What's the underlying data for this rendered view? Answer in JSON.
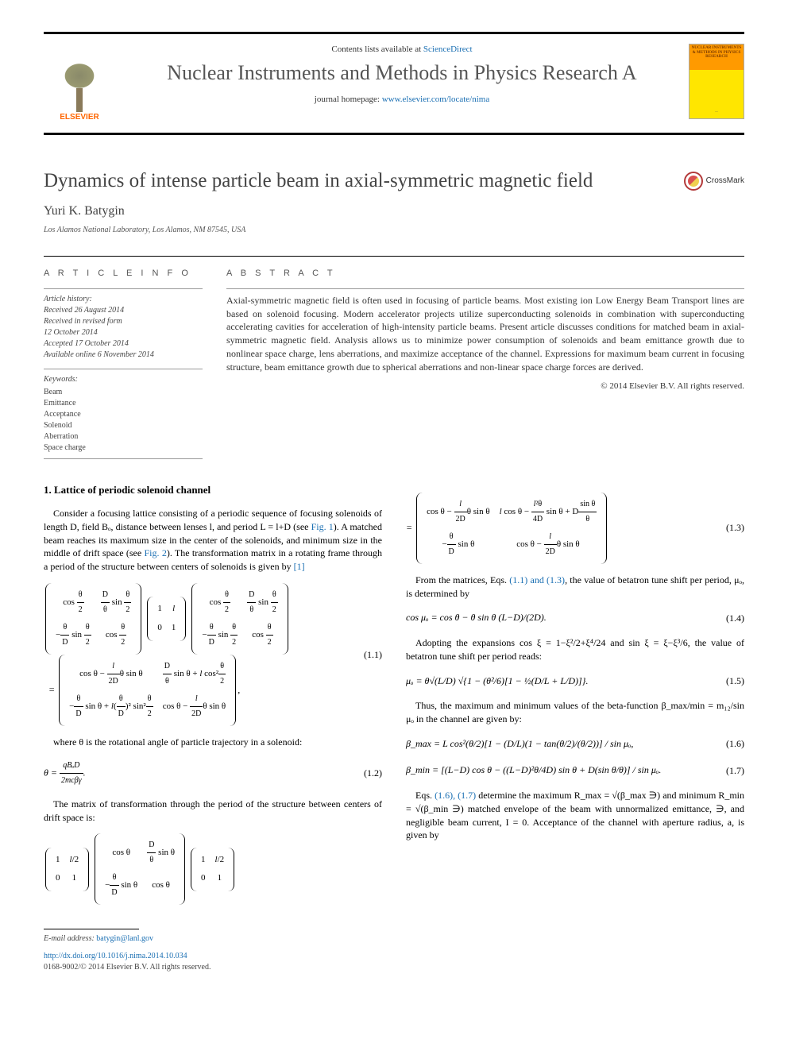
{
  "header": {
    "contents_prefix": "Contents lists available at ",
    "contents_link": "ScienceDirect",
    "journal_name": "Nuclear Instruments and Methods in Physics Research A",
    "homepage_prefix": "journal homepage: ",
    "homepage_link": "www.elsevier.com/locate/nima",
    "publisher": "ELSEVIER",
    "cover_text": "NUCLEAR INSTRUMENTS & METHODS IN PHYSICS RESEARCH"
  },
  "article": {
    "title": "Dynamics of intense particle beam in axial-symmetric magnetic field",
    "crossmark": "CrossMark",
    "author": "Yuri K. Batygin",
    "affiliation": "Los Alamos National Laboratory, Los Alamos, NM 87545, USA"
  },
  "info": {
    "section_label": "A R T I C L E   I N F O",
    "history_label": "Article history:",
    "history": [
      "Received 26 August 2014",
      "Received in revised form",
      "12 October 2014",
      "Accepted 17 October 2014",
      "Available online 6 November 2014"
    ],
    "keywords_label": "Keywords:",
    "keywords": [
      "Beam",
      "Emittance",
      "Acceptance",
      "Solenoid",
      "Aberration",
      "Space charge"
    ]
  },
  "abstract": {
    "section_label": "A B S T R A C T",
    "text": "Axial-symmetric magnetic field is often used in focusing of particle beams. Most existing ion Low Energy Beam Transport lines are based on solenoid focusing. Modern accelerator projects utilize superconducting solenoids in combination with superconducting accelerating cavities for acceleration of high-intensity particle beams. Present article discusses conditions for matched beam in axial-symmetric magnetic field. Analysis allows us to minimize power consumption of solenoids and beam emittance growth due to nonlinear space charge, lens aberrations, and maximize acceptance of the channel. Expressions for maximum beam current in focusing structure, beam emittance growth due to spherical aberrations and non-linear space charge forces are derived.",
    "copyright": "© 2014 Elsevier B.V. All rights reserved."
  },
  "body": {
    "sec1_heading": "1. Lattice of periodic solenoid channel",
    "p1": "Consider a focusing lattice consisting of a periodic sequence of focusing solenoids of length D, field Bₒ, distance between lenses l, and period L = l+D (see ",
    "p1_link1": "Fig. 1",
    "p1_mid": "). A matched beam reaches its maximum size in the center of the solenoids, and minimum size in the middle of drift space (see ",
    "p1_link2": "Fig. 2",
    "p1_end": "). The transformation matrix in a rotating frame through a period of the structure between centers of solenoids is given by ",
    "p1_ref": "[1]",
    "eq11_num": "(1.1)",
    "p2": "where θ is the rotational angle of particle trajectory in a solenoid:",
    "eq12_lhs": "θ = ",
    "eq12_num": "(1.2)",
    "eq12_frac_num": "qBₒD",
    "eq12_frac_den": "2mcβγ",
    "p3": "The matrix of transformation through the period of the structure between centers of drift space is:",
    "eq13_num": "(1.3)",
    "p4_start": "From the matrices, Eqs. ",
    "p4_link": "(1.1) and (1.3)",
    "p4_end": ", the value of betatron tune shift per period, μₒ, is determined by",
    "eq14": "cos μₒ = cos θ − θ sin θ (L−D)/(2D).",
    "eq14_num": "(1.4)",
    "p5": "Adopting the expansions cos ξ = 1−ξ²/2+ξ⁴/24 and sin ξ = ξ−ξ³/6, the value of betatron tune shift per period reads:",
    "eq15": "μₒ = θ√(L/D) √{1 − (θ²/6)[1 − ½(D/L + L/D)]}.",
    "eq15_num": "(1.5)",
    "p6": "Thus, the maximum and minimum values of the beta-function β_max/min = m₁₂/sin μₒ in the channel are given by:",
    "eq16": "β_max = L cos²(θ/2)[1 − (D/L)(1 − tan(θ/2)/(θ/2))] / sin μₒ,",
    "eq16_num": "(1.6)",
    "eq17": "β_min = [(L−D) cos θ − ((L−D)²θ/4D) sin θ + D(sin θ/θ)] / sin μₒ.",
    "eq17_num": "(1.7)",
    "p7_start": "Eqs. ",
    "p7_link": "(1.6), (1.7)",
    "p7_end": " determine the maximum R_max = √(β_max ∋) and minimum R_min = √(β_min ∋) matched envelope of the beam with unnormalized emittance, ∋, and negligible beam current, I = 0. Acceptance of the channel with aperture radius, a, is given by"
  },
  "footer": {
    "email_label": "E-mail address: ",
    "email": "batygin@lanl.gov",
    "doi": "http://dx.doi.org/10.1016/j.nima.2014.10.034",
    "issn": "0168-9002/© 2014 Elsevier B.V. All rights reserved."
  },
  "colors": {
    "link": "#1a6fb3",
    "text": "#333333",
    "elsevier_orange": "#ff6600",
    "cover_yellow": "#ffe600",
    "cover_orange": "#ff9a00"
  }
}
